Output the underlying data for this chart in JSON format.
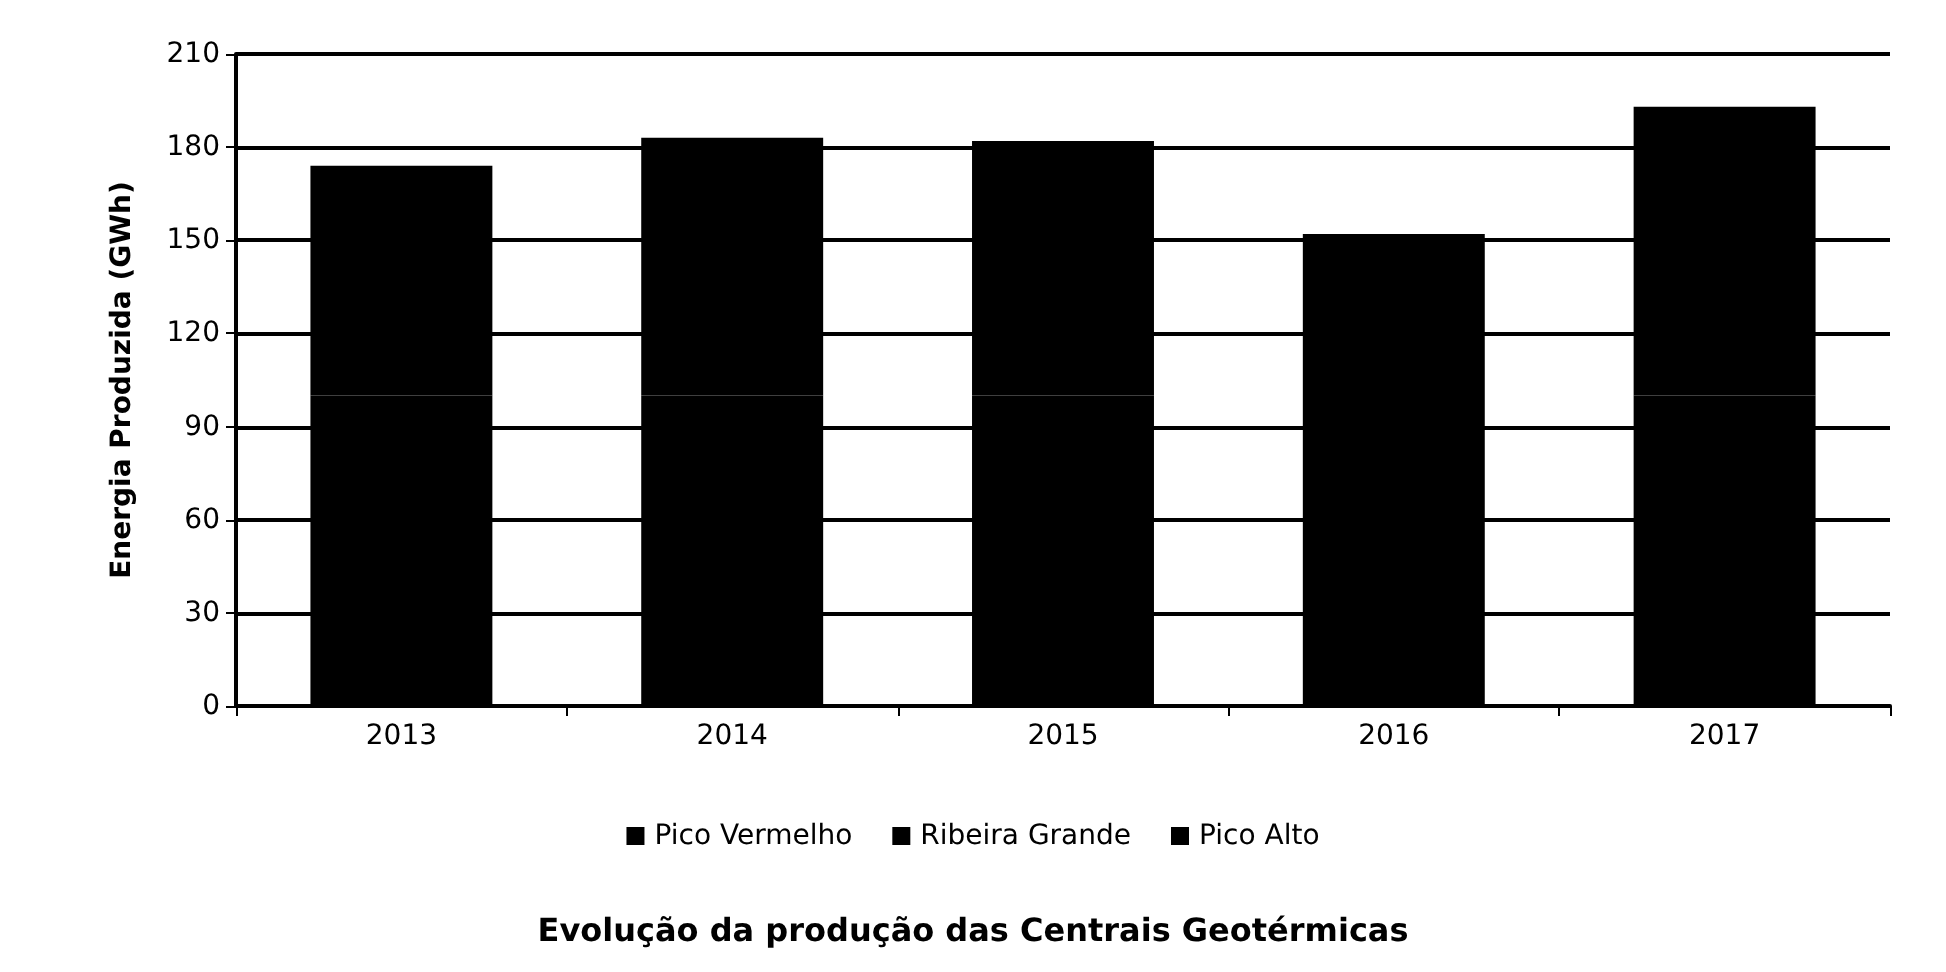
{
  "chart_data": {
    "type": "bar",
    "stacked": true,
    "title": "Evolução da produção das Centrais Geotérmicas",
    "ylabel": "Energia Produzida (GWh)",
    "categories": [
      "2013",
      "2014",
      "2015",
      "2016",
      "2017"
    ],
    "series": [
      {
        "name": "Pico Vermelho",
        "color": "#000000",
        "values": [
          100,
          100,
          100,
          76,
          100
        ]
      },
      {
        "name": "Ribeira Grande",
        "color": "#000000",
        "values": [
          74,
          83,
          82,
          76,
          93
        ]
      },
      {
        "name": "Pico Alto",
        "color": "#000000",
        "values": [
          0,
          0,
          0,
          0,
          0
        ]
      }
    ],
    "ylim": [
      0,
      210
    ],
    "yticks": [
      0,
      30,
      60,
      90,
      120,
      150,
      180,
      210
    ],
    "grid": "y",
    "legend": "bottom"
  }
}
